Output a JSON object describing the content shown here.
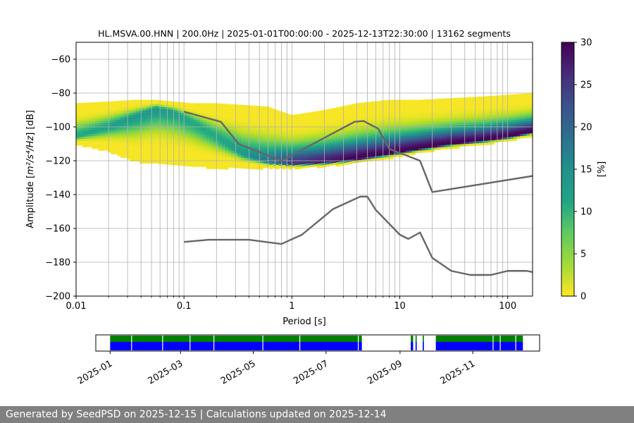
{
  "footer": {
    "text": "Generated by SeedPSD on 2025-12-15 | Calculations updated on 2025-12-14"
  },
  "chart_data": [
    {
      "type": "heatmap",
      "title": "HL.MSVA.00.HNN | 200.0Hz | 2025-01-01T00:00:00 - 2025-12-13T22:30:00 | 13162 segments",
      "xlabel": "Period [s]",
      "ylabel": {
        "prefix": "Amplitude [",
        "unit": "m²/s⁴/Hz",
        "suffix": "] [dB]"
      },
      "xscale": "log",
      "xlim": [
        0.01,
        170
      ],
      "ylim": [
        -200,
        -50
      ],
      "x_ticks": [
        0.01,
        0.1,
        1,
        10,
        100
      ],
      "x_tick_labels": [
        "0.01",
        "0.1",
        "1",
        "10",
        "100"
      ],
      "y_ticks": [
        -200,
        -180,
        -160,
        -140,
        -120,
        -100,
        -80,
        -60
      ],
      "y_tick_labels": [
        "−200",
        "−180",
        "−160",
        "−140",
        "−120",
        "−100",
        "−80",
        "−60"
      ],
      "grid": true,
      "colorbar": {
        "label": "[%]",
        "range": [
          0,
          30
        ],
        "ticks": [
          0,
          5,
          10,
          15,
          20,
          25,
          30
        ],
        "colormap": "viridis_r"
      },
      "density_band": {
        "x": [
          0.01,
          0.02,
          0.035,
          0.055,
          0.08,
          0.12,
          0.2,
          0.35,
          0.6,
          1,
          2,
          4,
          8,
          15,
          30,
          60,
          100,
          170
        ],
        "mode_db": [
          -106,
          -100,
          -94,
          -89,
          -91,
          -97,
          -106,
          -116,
          -121,
          -122,
          -121,
          -119,
          -116,
          -113,
          -110,
          -108,
          -106,
          -103
        ],
        "upper_db": [
          -86,
          -85,
          -84,
          -84,
          -85,
          -86,
          -86,
          -87,
          -88,
          -93,
          -90,
          -86,
          -84,
          -84,
          -83,
          -82,
          -81,
          -80
        ],
        "lower_db": [
          -110,
          -114,
          -120,
          -121,
          -122,
          -123,
          -124,
          -124,
          -124,
          -124,
          -123,
          -121,
          -118,
          -115,
          -112,
          -110,
          -108,
          -105
        ],
        "peak_percent": [
          12,
          13,
          14,
          14,
          13,
          12,
          12,
          14,
          18,
          25,
          28,
          30,
          30,
          30,
          30,
          30,
          30,
          30
        ]
      },
      "series": [
        {
          "values": [
            [
              0.1,
              -91
            ],
            [
              0.22,
              -97
            ],
            [
              0.32,
              -110
            ],
            [
              0.8,
              -120
            ],
            [
              3.8,
              -97
            ],
            [
              4.6,
              -96.5
            ],
            [
              6.3,
              -101
            ],
            [
              8,
              -113
            ],
            [
              15.4,
              -120
            ],
            [
              20,
              -138.5
            ],
            [
              170,
              -129
            ]
          ]
        },
        {
          "values": [
            [
              0.1,
              -168
            ],
            [
              0.17,
              -166.7
            ],
            [
              0.4,
              -166.7
            ],
            [
              0.8,
              -169.2
            ],
            [
              1.24,
              -163.7
            ],
            [
              2.4,
              -148.6
            ],
            [
              4.3,
              -141.2
            ],
            [
              5,
              -141.2
            ],
            [
              6,
              -149.1
            ],
            [
              10,
              -163.7
            ],
            [
              12,
              -166.2
            ],
            [
              15.4,
              -162.4
            ],
            [
              20,
              -177.4
            ],
            [
              30,
              -185.1
            ],
            [
              45,
              -187.5
            ],
            [
              70,
              -187.5
            ],
            [
              100,
              -185.1
            ],
            [
              150,
              -185.1
            ],
            [
              170,
              -185.8
            ]
          ]
        }
      ]
    },
    {
      "type": "timeline",
      "x_tick_labels": [
        "2025-01",
        "2025-03",
        "2025-05",
        "2025-07",
        "2025-09",
        "2025-11"
      ],
      "x_ticks": [
        "2025-01-01",
        "2025-03-01",
        "2025-05-01",
        "2025-07-01",
        "2025-09-01",
        "2025-11-01"
      ],
      "xlim": [
        "2024-12-20",
        "2025-12-27"
      ],
      "available_ranges": [
        [
          "2025-01-01",
          "2025-07-31"
        ],
        [
          "2025-09-10",
          "2025-09-12"
        ],
        [
          "2025-09-14",
          "2025-09-15"
        ],
        [
          "2025-09-20",
          "2025-09-21"
        ],
        [
          "2025-10-01",
          "2025-12-13"
        ]
      ],
      "gaps": [
        "2025-01-19",
        "2025-02-14",
        "2025-03-09",
        "2025-03-29",
        "2025-05-09",
        "2025-06-09",
        "2025-07-28",
        "2025-11-18",
        "2025-11-24",
        "2025-12-07"
      ],
      "colors": {
        "data": "#0000ff",
        "quality": "#008000"
      }
    }
  ]
}
